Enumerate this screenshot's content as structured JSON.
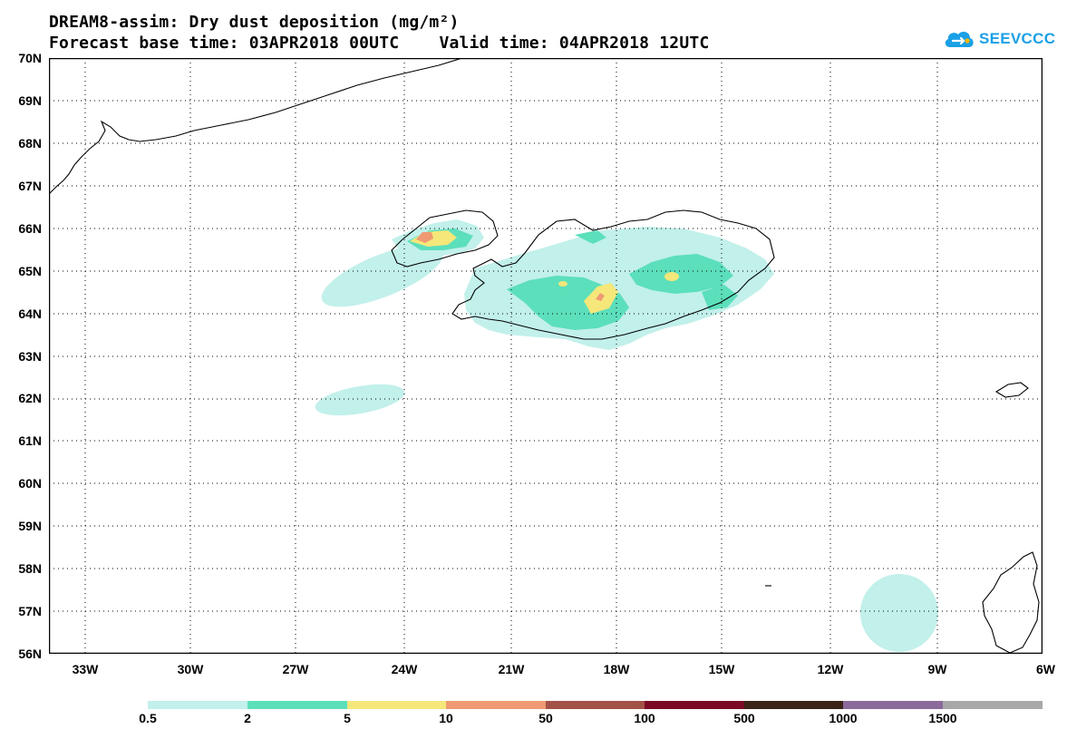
{
  "title": {
    "line1": "DREAM8-assim: Dry dust deposition (mg/m²)",
    "line2": "Forecast base time: 03APR2018 00UTC    Valid time: 04APR2018 12UTC"
  },
  "logo": {
    "text": "SEEVCCC",
    "icon": "cloud-logo-icon",
    "color": "#1aa0e6"
  },
  "map": {
    "lat_labels": [
      "70N",
      "69N",
      "68N",
      "67N",
      "66N",
      "65N",
      "64N",
      "63N",
      "62N",
      "61N",
      "60N",
      "59N",
      "58N",
      "57N",
      "56N"
    ],
    "lon_labels": [
      "33W",
      "30W",
      "27W",
      "24W",
      "21W",
      "18W",
      "15W",
      "12W",
      "9W",
      "6W"
    ],
    "lat_range": [
      56,
      70
    ],
    "lon_range": [
      -34.5,
      -6
    ],
    "grid": true,
    "grid_style": "dotted"
  },
  "colorbar": {
    "labels": [
      "0.5",
      "2",
      "5",
      "10",
      "50",
      "100",
      "500",
      "1000",
      "1500"
    ],
    "colors": [
      "#c2f0ea",
      "#5cdfbb",
      "#f5e77a",
      "#ef9a72",
      "#a35248",
      "#7a0a26",
      "#3b2415",
      "#8a6b9a",
      "#a8a8a8"
    ]
  }
}
